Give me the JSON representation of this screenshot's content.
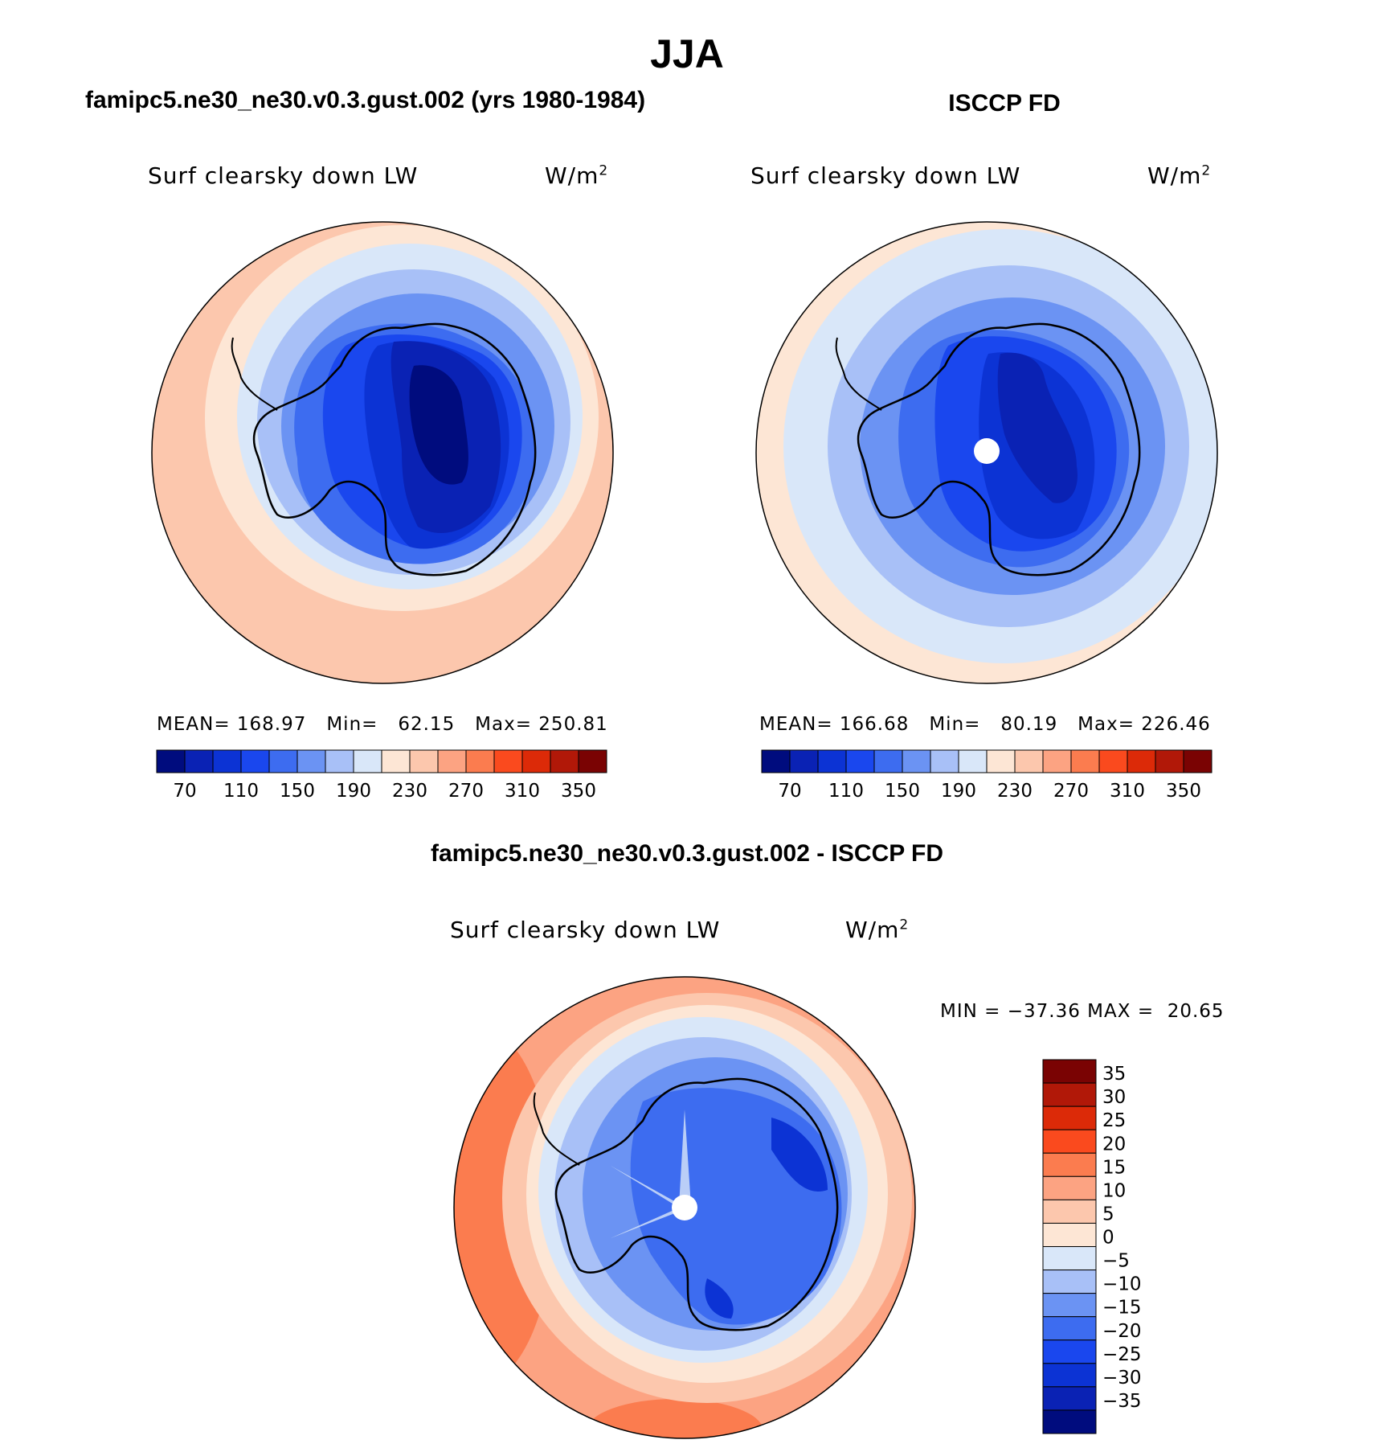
{
  "main_title": "JJA",
  "panels": {
    "left": {
      "title": "famipc5.ne30_ne30.v0.3.gust.002 (yrs 1980-1984)",
      "variable": "Surf clearsky down LW",
      "units": "W/m",
      "units_sup": "2",
      "stats": {
        "mean_label": "MEAN=",
        "mean": "168.97",
        "min_label": "Min=",
        "min": "62.15",
        "max_label": "Max=",
        "max": "250.81"
      }
    },
    "right": {
      "title": "ISCCP FD",
      "variable": "Surf clearsky down LW",
      "units": "W/m",
      "units_sup": "2",
      "stats": {
        "mean_label": "MEAN=",
        "mean": "166.68",
        "min_label": "Min=",
        "min": "80.19",
        "max_label": "Max=",
        "max": "226.46"
      }
    },
    "diff": {
      "title": "famipc5.ne30_ne30.v0.3.gust.002 - ISCCP FD",
      "variable": "Surf clearsky down LW",
      "units": "W/m",
      "units_sup": "2",
      "stats": {
        "min_label": "MIN =",
        "min": "−37.36",
        "max_label": "MAX =",
        "max": "20.65"
      }
    }
  },
  "chart_data": [
    {
      "type": "heatmap",
      "projection": "south polar stereographic",
      "title": "famipc5.ne30_ne30.v0.3.gust.002 (yrs 1980-1984)",
      "variable": "Surf clearsky down LW",
      "units": "W/m2",
      "colorbar_ticks": [
        "70",
        "110",
        "150",
        "190",
        "230",
        "270",
        "310",
        "350"
      ],
      "colorbar_colors": [
        "#000c7e",
        "#0a22b4",
        "#0c33d4",
        "#1a47ee",
        "#3d6cf0",
        "#6b93f3",
        "#a8c0f7",
        "#d9e7f9",
        "#fde6d5",
        "#fcc7ad",
        "#fca382",
        "#fb7c4f",
        "#fa4a1e",
        "#dc2a08",
        "#b11808",
        "#7a0303"
      ],
      "mean": 168.97,
      "min": 62.15,
      "max": 250.81
    },
    {
      "type": "heatmap",
      "projection": "south polar stereographic",
      "title": "ISCCP FD",
      "variable": "Surf clearsky down LW",
      "units": "W/m2",
      "colorbar_ticks": [
        "70",
        "110",
        "150",
        "190",
        "230",
        "270",
        "310",
        "350"
      ],
      "colorbar_colors": [
        "#000c7e",
        "#0a22b4",
        "#0c33d4",
        "#1a47ee",
        "#3d6cf0",
        "#6b93f3",
        "#a8c0f7",
        "#d9e7f9",
        "#fde6d5",
        "#fcc7ad",
        "#fca382",
        "#fb7c4f",
        "#fa4a1e",
        "#dc2a08",
        "#b11808",
        "#7a0303"
      ],
      "mean": 166.68,
      "min": 80.19,
      "max": 226.46
    },
    {
      "type": "heatmap",
      "projection": "south polar stereographic",
      "title": "famipc5.ne30_ne30.v0.3.gust.002 - ISCCP FD",
      "variable": "Surf clearsky down LW",
      "units": "W/m2",
      "colorbar_ticks": [
        "35",
        "30",
        "25",
        "20",
        "15",
        "10",
        "5",
        "0",
        "−5",
        "−10",
        "−15",
        "−20",
        "−25",
        "−30",
        "−35"
      ],
      "colorbar_colors": [
        "#7a0303",
        "#b11808",
        "#dc2a08",
        "#fa4a1e",
        "#fb7c4f",
        "#fca382",
        "#fcc7ad",
        "#fde6d5",
        "#d9e7f9",
        "#a8c0f7",
        "#6b93f3",
        "#3d6cf0",
        "#1a47ee",
        "#0c33d4",
        "#0a22b4",
        "#000c7e"
      ],
      "min": -37.36,
      "max": 20.65
    }
  ]
}
